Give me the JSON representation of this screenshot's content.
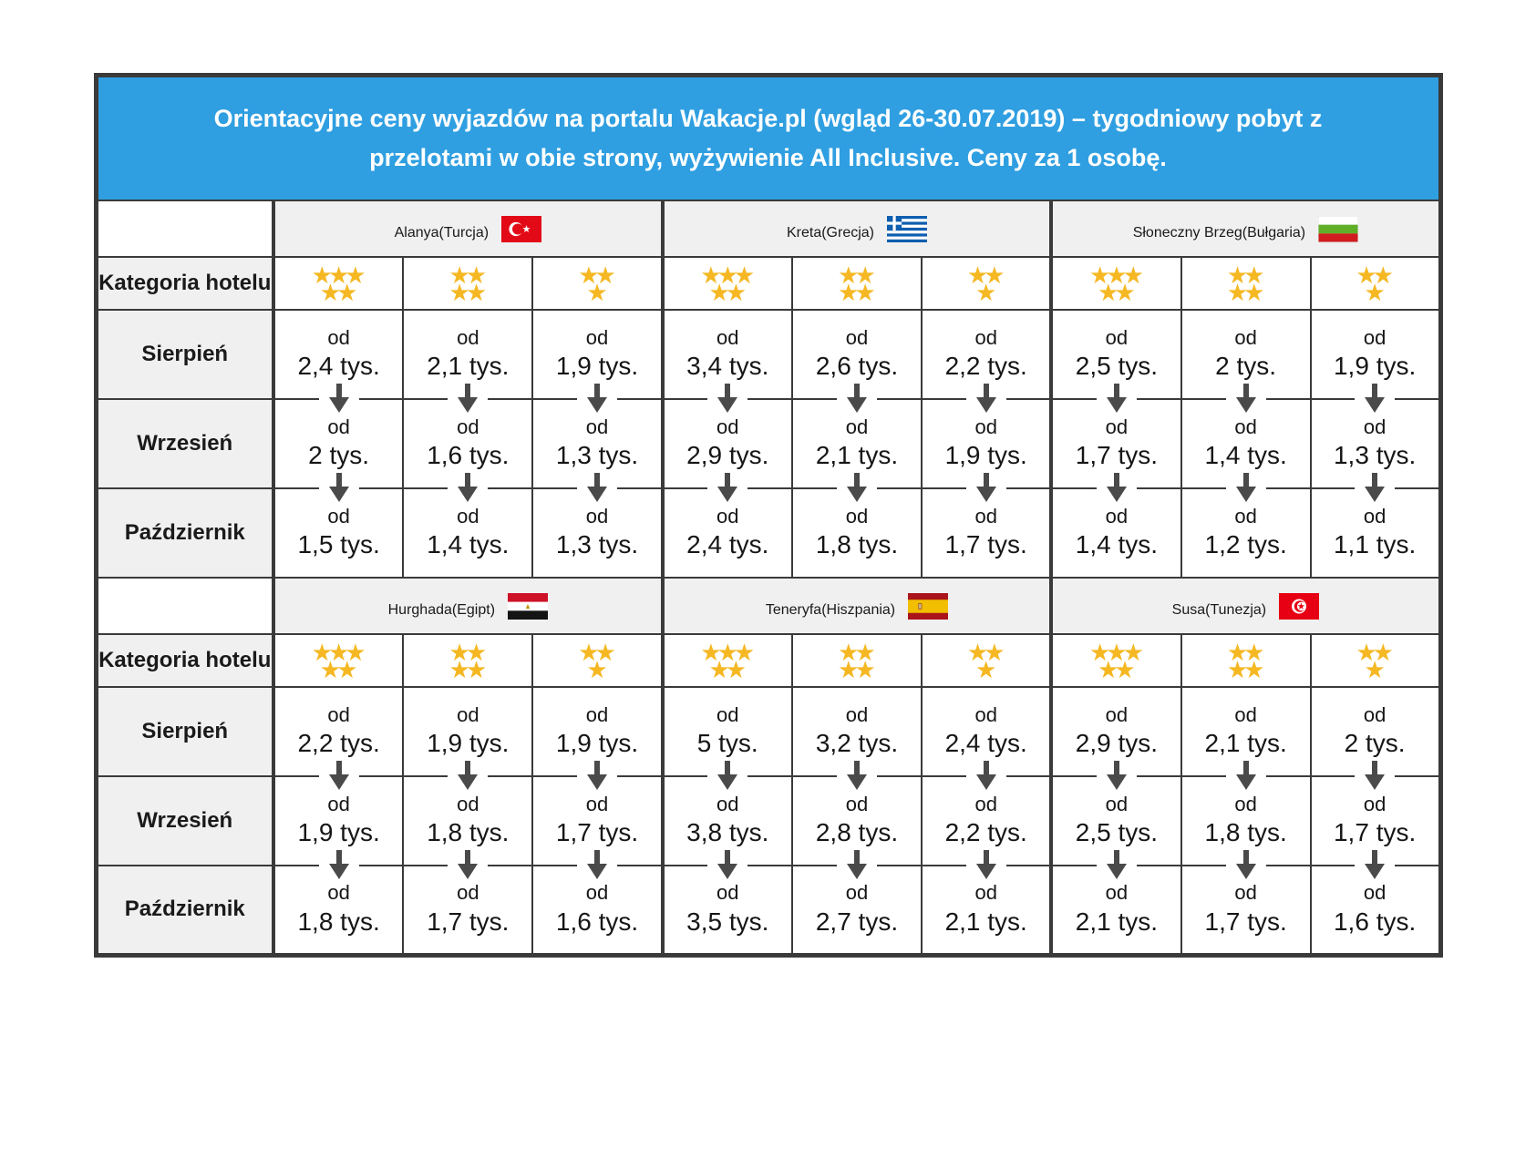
{
  "title": "Orientacyjne ceny wyjazdów na portalu Wakacje.pl (wgląd 26-30.07.2019) – tygodniowy pobyt z przelotami w obie strony, wyżywienie All Inclusive. Ceny za 1 osobę.",
  "labels": {
    "category": "Kategoria hotelu",
    "price_prefix": "od"
  },
  "icons": {
    "price_drop": "down-arrow-icon",
    "star": "star-icon"
  },
  "colors": {
    "header_bg": "#2F9FE1",
    "header_text": "#FFFFFF",
    "star": "#F5B823",
    "border": "#3A3A3A",
    "label_bg": "#F0F0F0",
    "arrow": "#4A4A4A"
  },
  "sections": [
    {
      "destinations": [
        {
          "name": "Alanya",
          "country": "(Turcja)",
          "flag": "turkey"
        },
        {
          "name": "Kreta",
          "country": "(Grecja)",
          "flag": "greece"
        },
        {
          "name": "Słoneczny Brzeg",
          "country": "(Bułgaria)",
          "flag": "bulgaria"
        }
      ],
      "star_categories": [
        5,
        4,
        3,
        5,
        4,
        3,
        5,
        4,
        3
      ],
      "rows": [
        {
          "month": "Sierpień",
          "prices": [
            "2,4 tys.",
            "2,1 tys.",
            "1,9 tys.",
            "3,4 tys.",
            "2,6 tys.",
            "2,2 tys.",
            "2,5 tys.",
            "2 tys.",
            "1,9 tys."
          ]
        },
        {
          "month": "Wrzesień",
          "prices": [
            "2 tys.",
            "1,6 tys.",
            "1,3 tys.",
            "2,9 tys.",
            "2,1 tys.",
            "1,9 tys.",
            "1,7 tys.",
            "1,4 tys.",
            "1,3 tys."
          ]
        },
        {
          "month": "Październik",
          "prices": [
            "1,5 tys.",
            "1,4 tys.",
            "1,3 tys.",
            "2,4 tys.",
            "1,8 tys.",
            "1,7 tys.",
            "1,4 tys.",
            "1,2 tys.",
            "1,1 tys."
          ]
        }
      ]
    },
    {
      "destinations": [
        {
          "name": "Hurghada",
          "country": "(Egipt)",
          "flag": "egypt"
        },
        {
          "name": "Teneryfa",
          "country": "(Hiszpania)",
          "flag": "spain"
        },
        {
          "name": "Susa",
          "country": "(Tunezja)",
          "flag": "tunisia"
        }
      ],
      "star_categories": [
        5,
        4,
        3,
        5,
        4,
        3,
        5,
        4,
        3
      ],
      "rows": [
        {
          "month": "Sierpień",
          "prices": [
            "2,2 tys.",
            "1,9 tys.",
            "1,9 tys.",
            "5 tys.",
            "3,2 tys.",
            "2,4 tys.",
            "2,9 tys.",
            "2,1 tys.",
            "2 tys."
          ]
        },
        {
          "month": "Wrzesień",
          "prices": [
            "1,9 tys.",
            "1,8 tys.",
            "1,7 tys.",
            "3,8 tys.",
            "2,8 tys.",
            "2,2 tys.",
            "2,5 tys.",
            "1,8 tys.",
            "1,7 tys."
          ]
        },
        {
          "month": "Październik",
          "prices": [
            "1,8 tys.",
            "1,7 tys.",
            "1,6 tys.",
            "3,5 tys.",
            "2,7 tys.",
            "2,1 tys.",
            "2,1 tys.",
            "1,7 tys.",
            "1,6 tys."
          ]
        }
      ]
    }
  ]
}
